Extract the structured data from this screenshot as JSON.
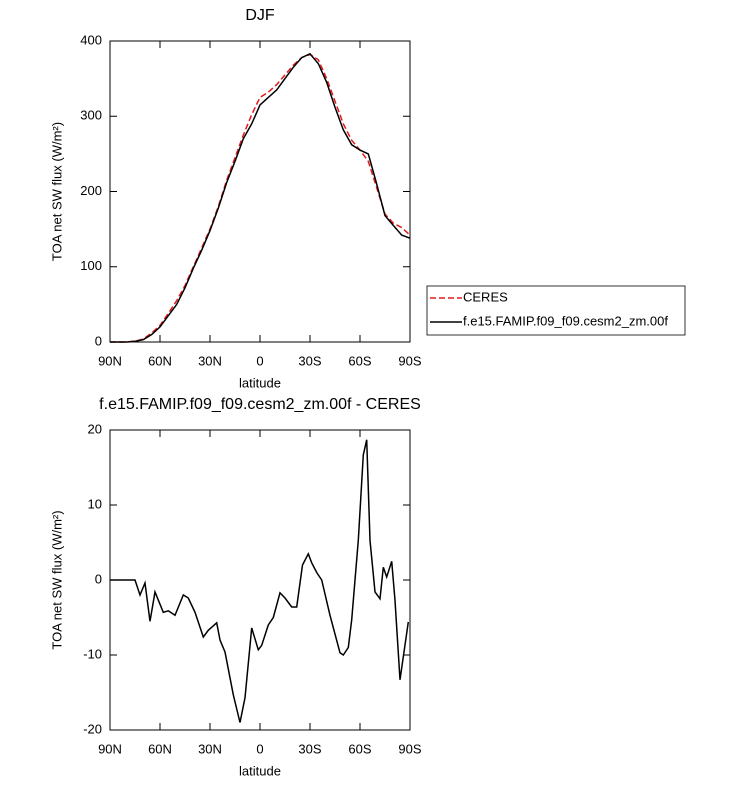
{
  "chart_data": [
    {
      "type": "line",
      "title": "DJF",
      "xlabel": "latitude",
      "ylabel": "TOA net SW flux (W/m²)",
      "x": [
        90,
        85,
        80,
        75,
        70,
        65,
        60,
        55,
        50,
        45,
        40,
        35,
        30,
        25,
        20,
        15,
        10,
        5,
        0,
        -5,
        -10,
        -15,
        -20,
        -25,
        -30,
        -35,
        -40,
        -45,
        -50,
        -55,
        -60,
        -65,
        -70,
        -75,
        -80,
        -85,
        -90
      ],
      "series": [
        {
          "name": "CERES",
          "color": "#e41a1c",
          "dash": true,
          "values": [
            0,
            0,
            0,
            1,
            4,
            12,
            22,
            38,
            55,
            75,
            100,
            125,
            150,
            180,
            215,
            245,
            275,
            302,
            325,
            332,
            342,
            355,
            368,
            378,
            382,
            375,
            350,
            320,
            290,
            268,
            255,
            240,
            205,
            170,
            158,
            152,
            142
          ]
        },
        {
          "name": "f.e15.FAMIP.f09_f09.cesm2_zm.00f",
          "color": "#000000",
          "dash": false,
          "values": [
            0,
            0,
            0,
            1,
            3,
            10,
            20,
            35,
            50,
            72,
            98,
            122,
            148,
            178,
            212,
            240,
            270,
            290,
            315,
            325,
            335,
            350,
            365,
            378,
            383,
            370,
            345,
            312,
            282,
            262,
            255,
            250,
            210,
            168,
            155,
            142,
            138
          ]
        }
      ],
      "xlim": [
        90,
        -90
      ],
      "xticks": [
        {
          "value": 90,
          "label": "90N"
        },
        {
          "value": 60,
          "label": "60N"
        },
        {
          "value": 30,
          "label": "30N"
        },
        0,
        {
          "value": -30,
          "label": "30S"
        },
        {
          "value": -60,
          "label": "60S"
        },
        {
          "value": -90,
          "label": "90S"
        }
      ],
      "ylim": [
        0,
        400
      ],
      "yticks": [
        0,
        100,
        200,
        300,
        400
      ],
      "legend": "outside-right"
    },
    {
      "type": "line",
      "title": "f.e15.FAMIP.f09_f09.cesm2_zm.00f - CERES",
      "xlabel": "latitude",
      "ylabel": "TOA net SW flux (W/m²)",
      "x": [
        90,
        75,
        72,
        69,
        66,
        63,
        58,
        55,
        51,
        46,
        43,
        39,
        34,
        31,
        26,
        24,
        21,
        16,
        12,
        9,
        5,
        1,
        -1,
        -5,
        -8,
        -12,
        -15,
        -19,
        -22,
        -25.5,
        -29,
        -31,
        -34,
        -37,
        -42,
        -48,
        -50,
        -53,
        -55,
        -59,
        -62,
        -64,
        -66,
        -69,
        -72,
        -74,
        -76,
        -79,
        -81,
        -84,
        -89
      ],
      "series": [
        {
          "color": "#000000",
          "dash": false,
          "values": [
            0,
            0,
            -2,
            -0.4,
            -5.5,
            -1.6,
            -4.3,
            -4.1,
            -4.7,
            -2,
            -2.4,
            -4.3,
            -7.6,
            -6.7,
            -5.7,
            -8,
            -9.6,
            -15.3,
            -19,
            -15.7,
            -6.4,
            -9.3,
            -8.7,
            -6,
            -5,
            -1.7,
            -2.4,
            -3.6,
            -3.6,
            2,
            3.5,
            2.3,
            1,
            0,
            -4.7,
            -9.7,
            -10,
            -9,
            -5.3,
            5.3,
            16.7,
            18.7,
            5.3,
            -1.6,
            -2.5,
            1.7,
            0.4,
            2.5,
            -2.7,
            -13.3,
            -5.6
          ]
        }
      ],
      "xlim": [
        90,
        -90
      ],
      "xticks": [
        {
          "value": 90,
          "label": "90N"
        },
        {
          "value": 60,
          "label": "60N"
        },
        {
          "value": 30,
          "label": "30N"
        },
        0,
        {
          "value": -30,
          "label": "30S"
        },
        {
          "value": -60,
          "label": "60S"
        },
        {
          "value": -90,
          "label": "90S"
        }
      ],
      "ylim": [
        -20,
        20
      ],
      "yticks": [
        -20,
        -10,
        0,
        10,
        20
      ]
    }
  ]
}
